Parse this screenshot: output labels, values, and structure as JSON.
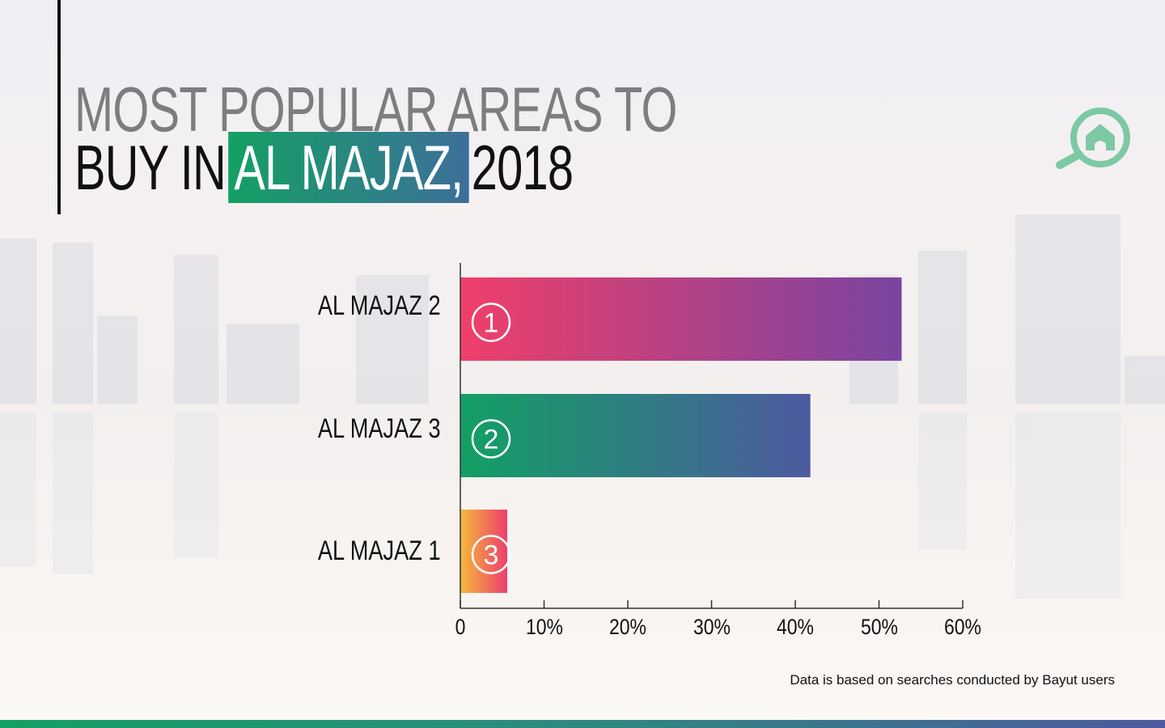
{
  "title": {
    "line1": "MOST POPULAR AREAS TO",
    "line2_prefix": "BUY IN",
    "highlight": "AL MAJAZ,",
    "year": "2018"
  },
  "logo": "search-home-icon",
  "note": "Data is based on searches conducted by Bayut users",
  "colors": {
    "accent_green": "#14a064",
    "logo": "#7cc9a4"
  },
  "chart_data": {
    "type": "bar",
    "orientation": "horizontal",
    "categories": [
      "AL MAJAZ 2",
      "AL MAJAZ 3",
      "AL MAJAZ 1"
    ],
    "ranks": [
      "1",
      "2",
      "3"
    ],
    "values": [
      52.7,
      41.8,
      5.6
    ],
    "xlim": [
      0,
      60
    ],
    "xticks": [
      "0",
      "10%",
      "20%",
      "30%",
      "40%",
      "50%",
      "60%"
    ],
    "gradients": [
      [
        "#ef3f6a",
        "#7a44a0"
      ],
      [
        "#12a064",
        "#4d5aa0"
      ],
      [
        "#f6b93b",
        "#ec3e6e"
      ]
    ]
  }
}
